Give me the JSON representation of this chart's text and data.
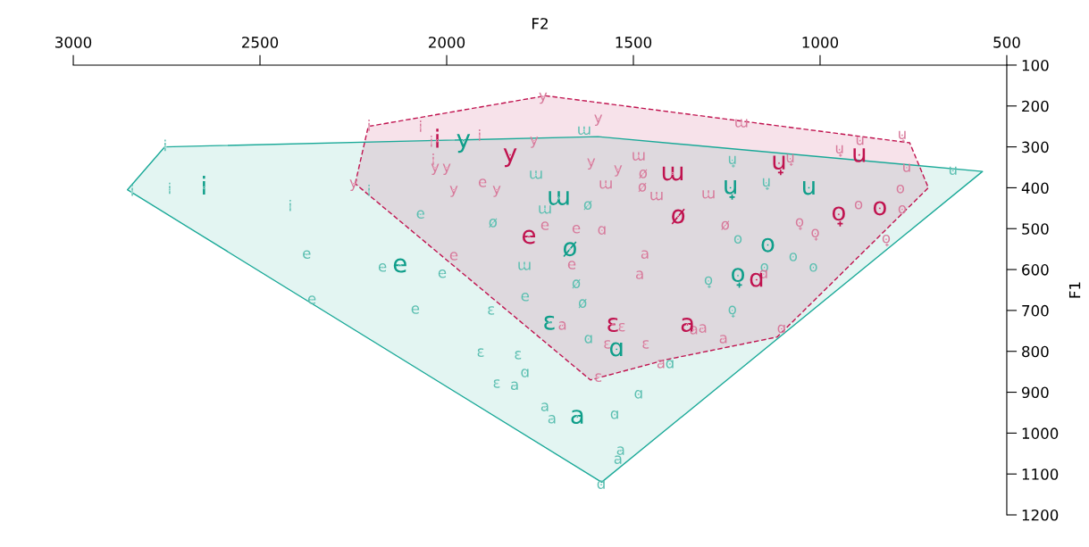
{
  "chart_data": {
    "type": "scatter",
    "xlabel": "F2",
    "ylabel": "F1",
    "xlim": [
      3000,
      500
    ],
    "ylim": [
      1200,
      100
    ],
    "xticks": [
      3000,
      2500,
      2000,
      1500,
      1000,
      500
    ],
    "yticks": [
      100,
      200,
      300,
      400,
      500,
      600,
      700,
      800,
      900,
      1000,
      1100,
      1200
    ],
    "grid": false,
    "marker": "none",
    "series": [
      {
        "type": "area",
        "color": "#1aa998",
        "line_style": "solid",
        "x": [
          2755,
          1595,
          565,
          1585,
          2855
        ],
        "values": [
          300,
          275,
          360,
          1120,
          405
        ]
      },
      {
        "type": "area",
        "color": "#c0134f",
        "line_style": "dashed",
        "x": [
          2245,
          2210,
          1735,
          760,
          710,
          1115,
          1410,
          1615
        ],
        "values": [
          390,
          250,
          175,
          290,
          400,
          765,
          820,
          870
        ]
      },
      {
        "color": "#5cbfb1",
        "x": [
          2842,
          2742,
          2754,
          2419,
          2208,
          2375,
          2172,
          2012,
          2084,
          2361,
          2070,
          1790,
          1881,
          1909,
          1809,
          1866,
          1818,
          1737,
          1718,
          1534,
          1541,
          1790,
          1486,
          1550,
          1586,
          1620,
          1402,
          1792,
          1632,
          1761,
          1737,
          1876,
          1622,
          1636,
          1653,
          1235,
          1144,
          1220,
          1072,
          1018,
          1149,
          1299,
          1235,
          644
        ],
        "values": [
          410,
          405,
          300,
          447,
          410,
          563,
          595,
          610,
          698,
          674,
          465,
          667,
          700,
          803,
          809,
          879,
          884,
          936,
          966,
          1043,
          1065,
          853,
          905,
          955,
          1126,
          770,
          831,
          591,
          260,
          368,
          453,
          486,
          443,
          683,
          635,
          333,
          388,
          526,
          569,
          595,
          595,
          628,
          700,
          358
        ],
        "value_labels": [
          "i",
          "i",
          "i",
          "i",
          "i",
          "e",
          "e",
          "e",
          "e",
          "e",
          "e",
          "e",
          "ɛ",
          "ɛ",
          "ɛ",
          "ɛ",
          "a",
          "a",
          "a",
          "a",
          "a",
          "ɑ",
          "ɑ",
          "ɑ",
          "ɑ",
          "ɑ",
          "ɑ",
          "ɯ",
          "ɯ",
          "ɯ",
          "ɯ",
          "ø",
          "ø",
          "ø",
          "ø",
          "u̟",
          "u̟",
          "o",
          "o",
          "o",
          "o",
          "o̟",
          "o̟",
          "u"
        ]
      },
      {
        "color": "#d77a9b",
        "x": [
          2208,
          2070,
          2041,
          1912,
          2036,
          2031,
          2000,
          2249,
          1981,
          1866,
          1766,
          1613,
          1594,
          1742,
          1541,
          1904,
          1981,
          1737,
          1653,
          1665,
          1486,
          1211,
          1299,
          1438,
          1574,
          1474,
          1476,
          1254,
          1584,
          1103,
          1151,
          1469,
          1483,
          1338,
          1259,
          1314,
          1426,
          1690,
          1531,
          1570,
          1467,
          1594,
          1080,
          948,
          780,
          893,
          768,
          785,
          780,
          897,
          1055,
          1013,
          823
        ],
        "values": [
          251,
          253,
          290,
          275,
          334,
          351,
          351,
          390,
          405,
          405,
          285,
          338,
          231,
          177,
          355,
          388,
          567,
          493,
          501,
          589,
          323,
          242,
          416,
          420,
          392,
          366,
          399,
          492,
          504,
          745,
          611,
          563,
          613,
          748,
          770,
          744,
          831,
          737,
          741,
          783,
          783,
          864,
          329,
          307,
          272,
          285,
          351,
          403,
          453,
          442,
          486,
          512,
          526
        ],
        "value_labels": [
          "i",
          "i",
          "i",
          "i",
          "i",
          "y",
          "y",
          "y",
          "y",
          "y",
          "y",
          "y",
          "y",
          "y",
          "y",
          "e",
          "e",
          "e",
          "e",
          "e",
          "ɯ",
          "ɯ",
          "ɯ",
          "ɯ",
          "ɯ",
          "ø",
          "ø",
          "ø",
          "ɑ",
          "ɑ",
          "ɑ",
          "a",
          "a",
          "a",
          "a",
          "a",
          "a",
          "a",
          "ɛ",
          "ɛ",
          "ɛ",
          "ɛ",
          "u̟",
          "u̟",
          "u̟",
          "u",
          "u",
          "o",
          "o",
          "o",
          "o̟",
          "o̟",
          "o̟"
        ]
      },
      {
        "type": "bubble",
        "color": "#0f9e8a",
        "sizes": [
          1,
          1,
          1,
          1,
          1,
          1,
          1,
          1,
          1,
          1,
          1,
          1
        ],
        "x": [
          2650,
          1955,
          1700,
          1240,
          1030,
          2125,
          1670,
          1140,
          1220,
          1725,
          1545,
          1650
        ],
        "values": [
          400,
          285,
          425,
          400,
          400,
          590,
          550,
          540,
          615,
          730,
          795,
          960
        ],
        "value_labels": [
          "i",
          "y",
          "ɯ",
          "u̟",
          "u",
          "e",
          "ø",
          "o",
          "o̟",
          "ɛ",
          "ɑ",
          "a"
        ]
      },
      {
        "type": "bubble",
        "color": "#c0134f",
        "sizes": [
          1,
          1,
          1,
          1,
          1,
          1,
          1,
          1,
          1,
          1,
          1,
          1
        ],
        "x": [
          2025,
          1830,
          1395,
          1110,
          895,
          1380,
          1780,
          950,
          840,
          1170,
          1555,
          1355
        ],
        "values": [
          285,
          320,
          365,
          340,
          320,
          470,
          520,
          465,
          450,
          625,
          735,
          735
        ],
        "value_labels": [
          "i",
          "y",
          "ɯ",
          "u̟",
          "u",
          "ø",
          "e",
          "o̟",
          "o",
          "ɑ",
          "ɛ",
          "a"
        ]
      }
    ]
  }
}
